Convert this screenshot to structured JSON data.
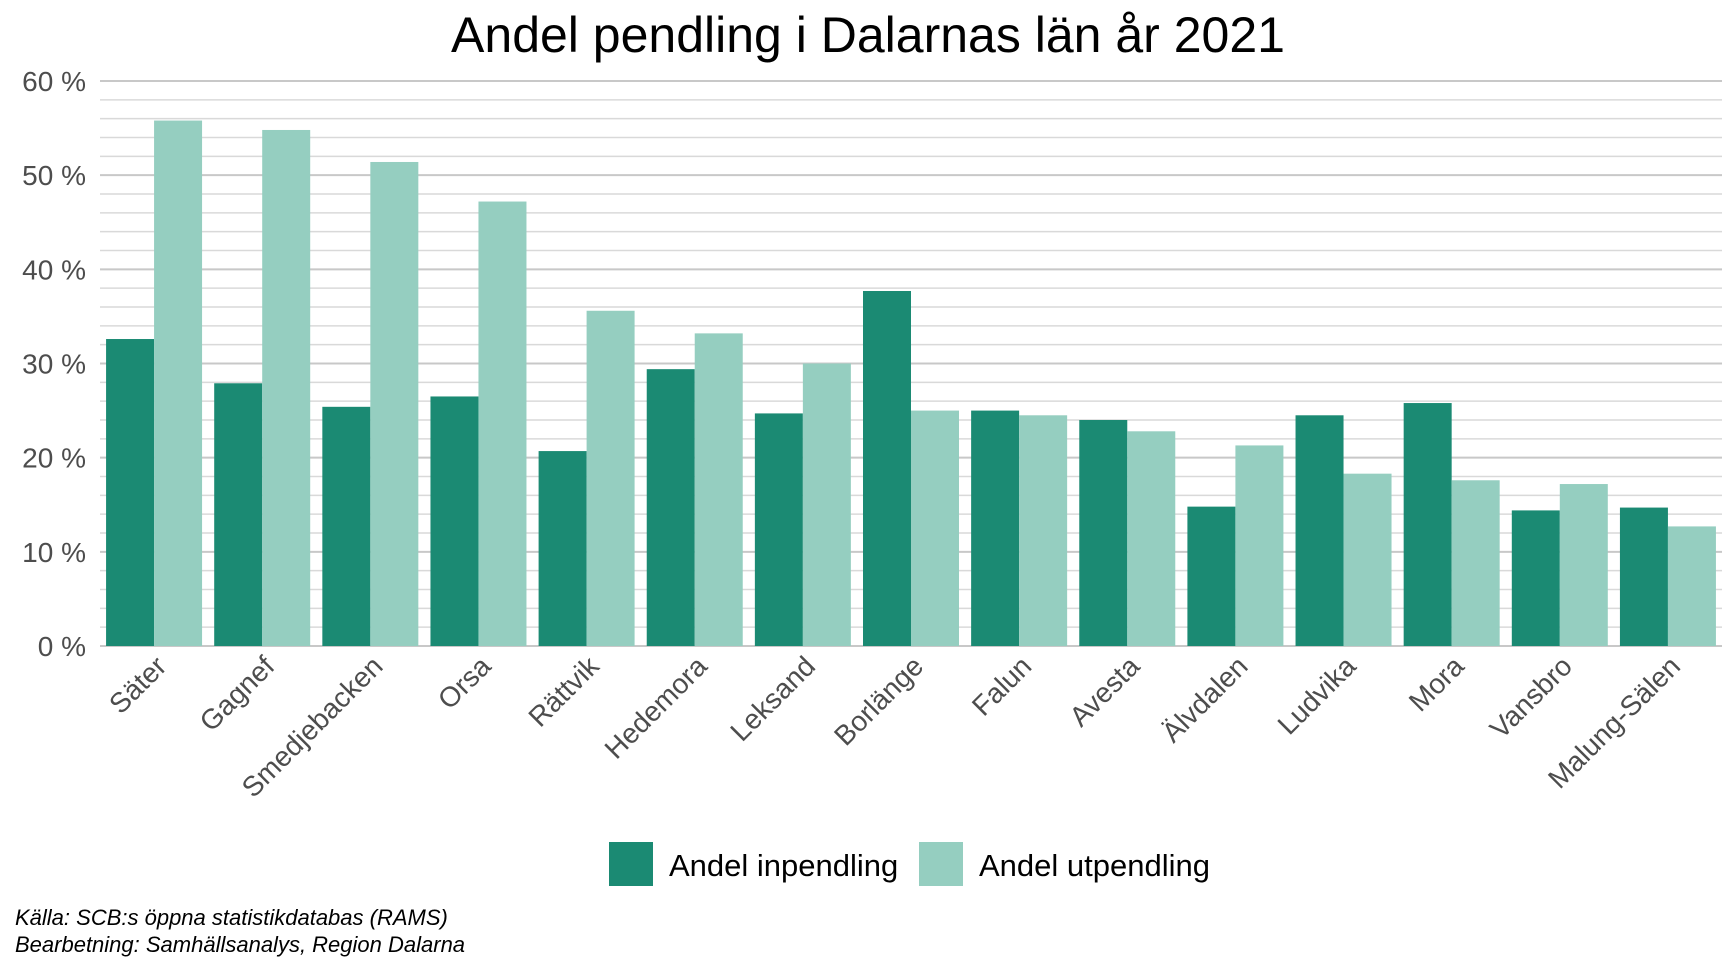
{
  "chart_data": {
    "type": "bar",
    "title": "Andel pendling i Dalarnas län år 2021",
    "xlabel": "",
    "ylabel": "",
    "ylim": [
      0,
      60
    ],
    "y_ticks": [
      "0 %",
      "10 %",
      "20 %",
      "30 %",
      "40 %",
      "50 %",
      "60 %"
    ],
    "y_tick_values": [
      0,
      10,
      20,
      30,
      40,
      50,
      60
    ],
    "grid": true,
    "legend_position": "bottom",
    "categories": [
      "Säter",
      "Gagnef",
      "Smedjebacken",
      "Orsa",
      "Rättvik",
      "Hedemora",
      "Leksand",
      "Borlänge",
      "Falun",
      "Avesta",
      "Älvdalen",
      "Ludvika",
      "Mora",
      "Vansbro",
      "Malung-Sälen"
    ],
    "series": [
      {
        "name": "Andel inpendling",
        "color": "#1b8a73",
        "values": [
          32.6,
          27.9,
          25.4,
          26.5,
          20.7,
          29.4,
          24.7,
          37.7,
          25.0,
          24.0,
          14.8,
          24.5,
          25.8,
          14.4,
          14.7
        ]
      },
      {
        "name": "Andel utpendling",
        "color": "#95cec0",
        "values": [
          55.8,
          54.8,
          51.4,
          47.2,
          35.6,
          33.2,
          30.0,
          25.0,
          24.5,
          22.8,
          21.3,
          18.3,
          17.6,
          17.2,
          12.7
        ]
      }
    ]
  },
  "footer": {
    "source": "Källa: SCB:s öppna statistikdatabas (RAMS)",
    "processing": "Bearbetning: Samhällsanalys, Region Dalarna"
  }
}
